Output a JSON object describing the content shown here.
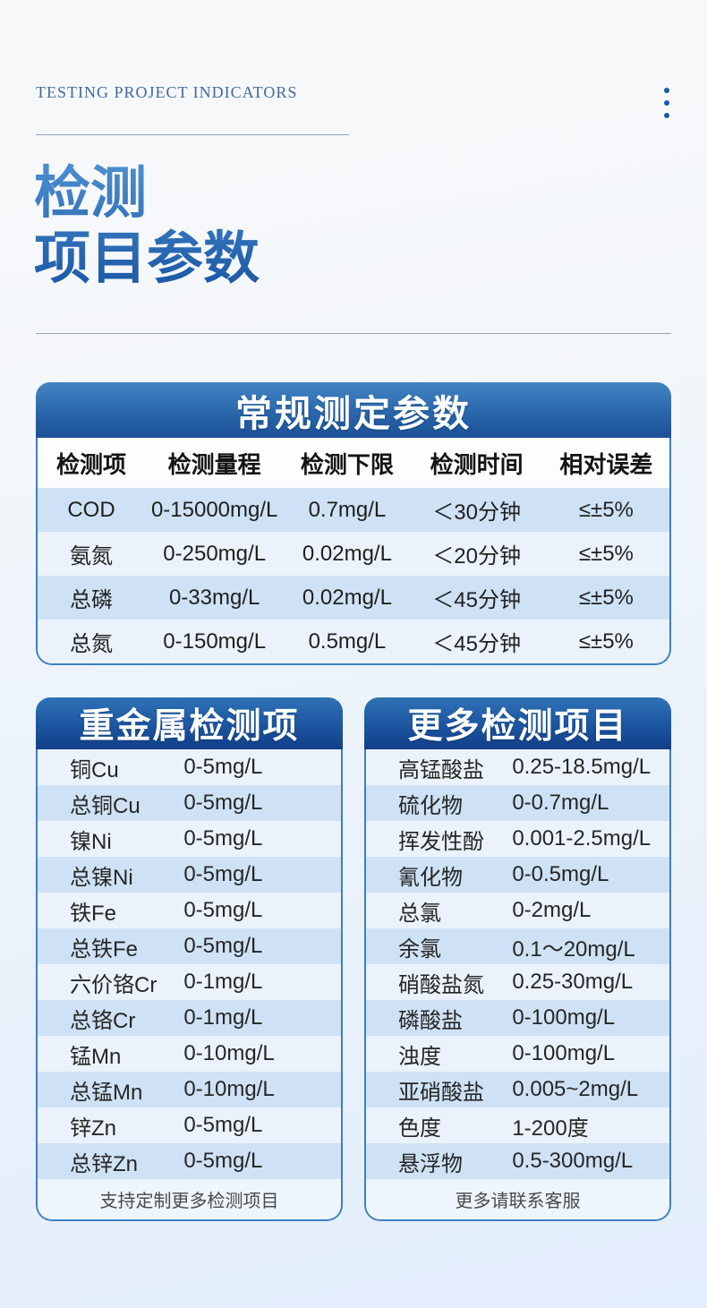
{
  "header": {
    "eyebrow": "TESTING PROJECT INDICATORS",
    "title_line1": "检测",
    "title_line2": "项目参数"
  },
  "icons": {
    "menu_dots": "vertical-ellipsis"
  },
  "colors": {
    "accent_blue": "#2d6fb7",
    "card_header_top": "#4285c4",
    "card_header_bottom": "#1c5096",
    "half_card_header_top": "#2f72b6",
    "half_card_header_bottom": "#113f87",
    "stripe_blue": "#cfe2f5",
    "stripe_light": "#ebf2fb",
    "border_blue": "#3f7fc1"
  },
  "main_table": {
    "title": "常规测定参数",
    "columns": [
      "检测项",
      "检测量程",
      "检测下限",
      "检测时间",
      "相对误差"
    ],
    "rows": [
      [
        "COD",
        "0-15000mg/L",
        "0.7mg/L",
        "＜30分钟",
        "≤±5%"
      ],
      [
        "氨氮",
        "0-250mg/L",
        "0.02mg/L",
        "＜20分钟",
        "≤±5%"
      ],
      [
        "总磷",
        "0-33mg/L",
        "0.02mg/L",
        "＜45分钟",
        "≤±5%"
      ],
      [
        "总氮",
        "0-150mg/L",
        "0.5mg/L",
        "＜45分钟",
        "≤±5%"
      ]
    ]
  },
  "heavy_metal_table": {
    "title": "重金属检测项",
    "rows": [
      [
        "铜Cu",
        "0-5mg/L"
      ],
      [
        "总铜Cu",
        "0-5mg/L"
      ],
      [
        "镍Ni",
        "0-5mg/L"
      ],
      [
        "总镍Ni",
        "0-5mg/L"
      ],
      [
        "铁Fe",
        "0-5mg/L"
      ],
      [
        "总铁Fe",
        "0-5mg/L"
      ],
      [
        "六价铬Cr",
        "0-1mg/L"
      ],
      [
        "总铬Cr",
        "0-1mg/L"
      ],
      [
        "锰Mn",
        "0-10mg/L"
      ],
      [
        "总锰Mn",
        "0-10mg/L"
      ],
      [
        "锌Zn",
        "0-5mg/L"
      ],
      [
        "总锌Zn",
        "0-5mg/L"
      ]
    ],
    "footer": "支持定制更多检测项目"
  },
  "more_items_table": {
    "title": "更多检测项目",
    "rows": [
      [
        "高锰酸盐",
        "0.25-18.5mg/L"
      ],
      [
        "硫化物",
        "0-0.7mg/L"
      ],
      [
        "挥发性酚",
        "0.001-2.5mg/L"
      ],
      [
        "氰化物",
        "0-0.5mg/L"
      ],
      [
        "总氯",
        "0-2mg/L"
      ],
      [
        "余氯",
        "0.1～20mg/L"
      ],
      [
        "硝酸盐氮",
        "0.25-30mg/L"
      ],
      [
        "磷酸盐",
        "0-100mg/L"
      ],
      [
        "浊度",
        "0-100mg/L"
      ],
      [
        "亚硝酸盐",
        "0.005~2mg/L"
      ],
      [
        "色度",
        "1-200度"
      ],
      [
        "悬浮物",
        "0.5-300mg/L"
      ]
    ],
    "footer": "更多请联系客服"
  }
}
